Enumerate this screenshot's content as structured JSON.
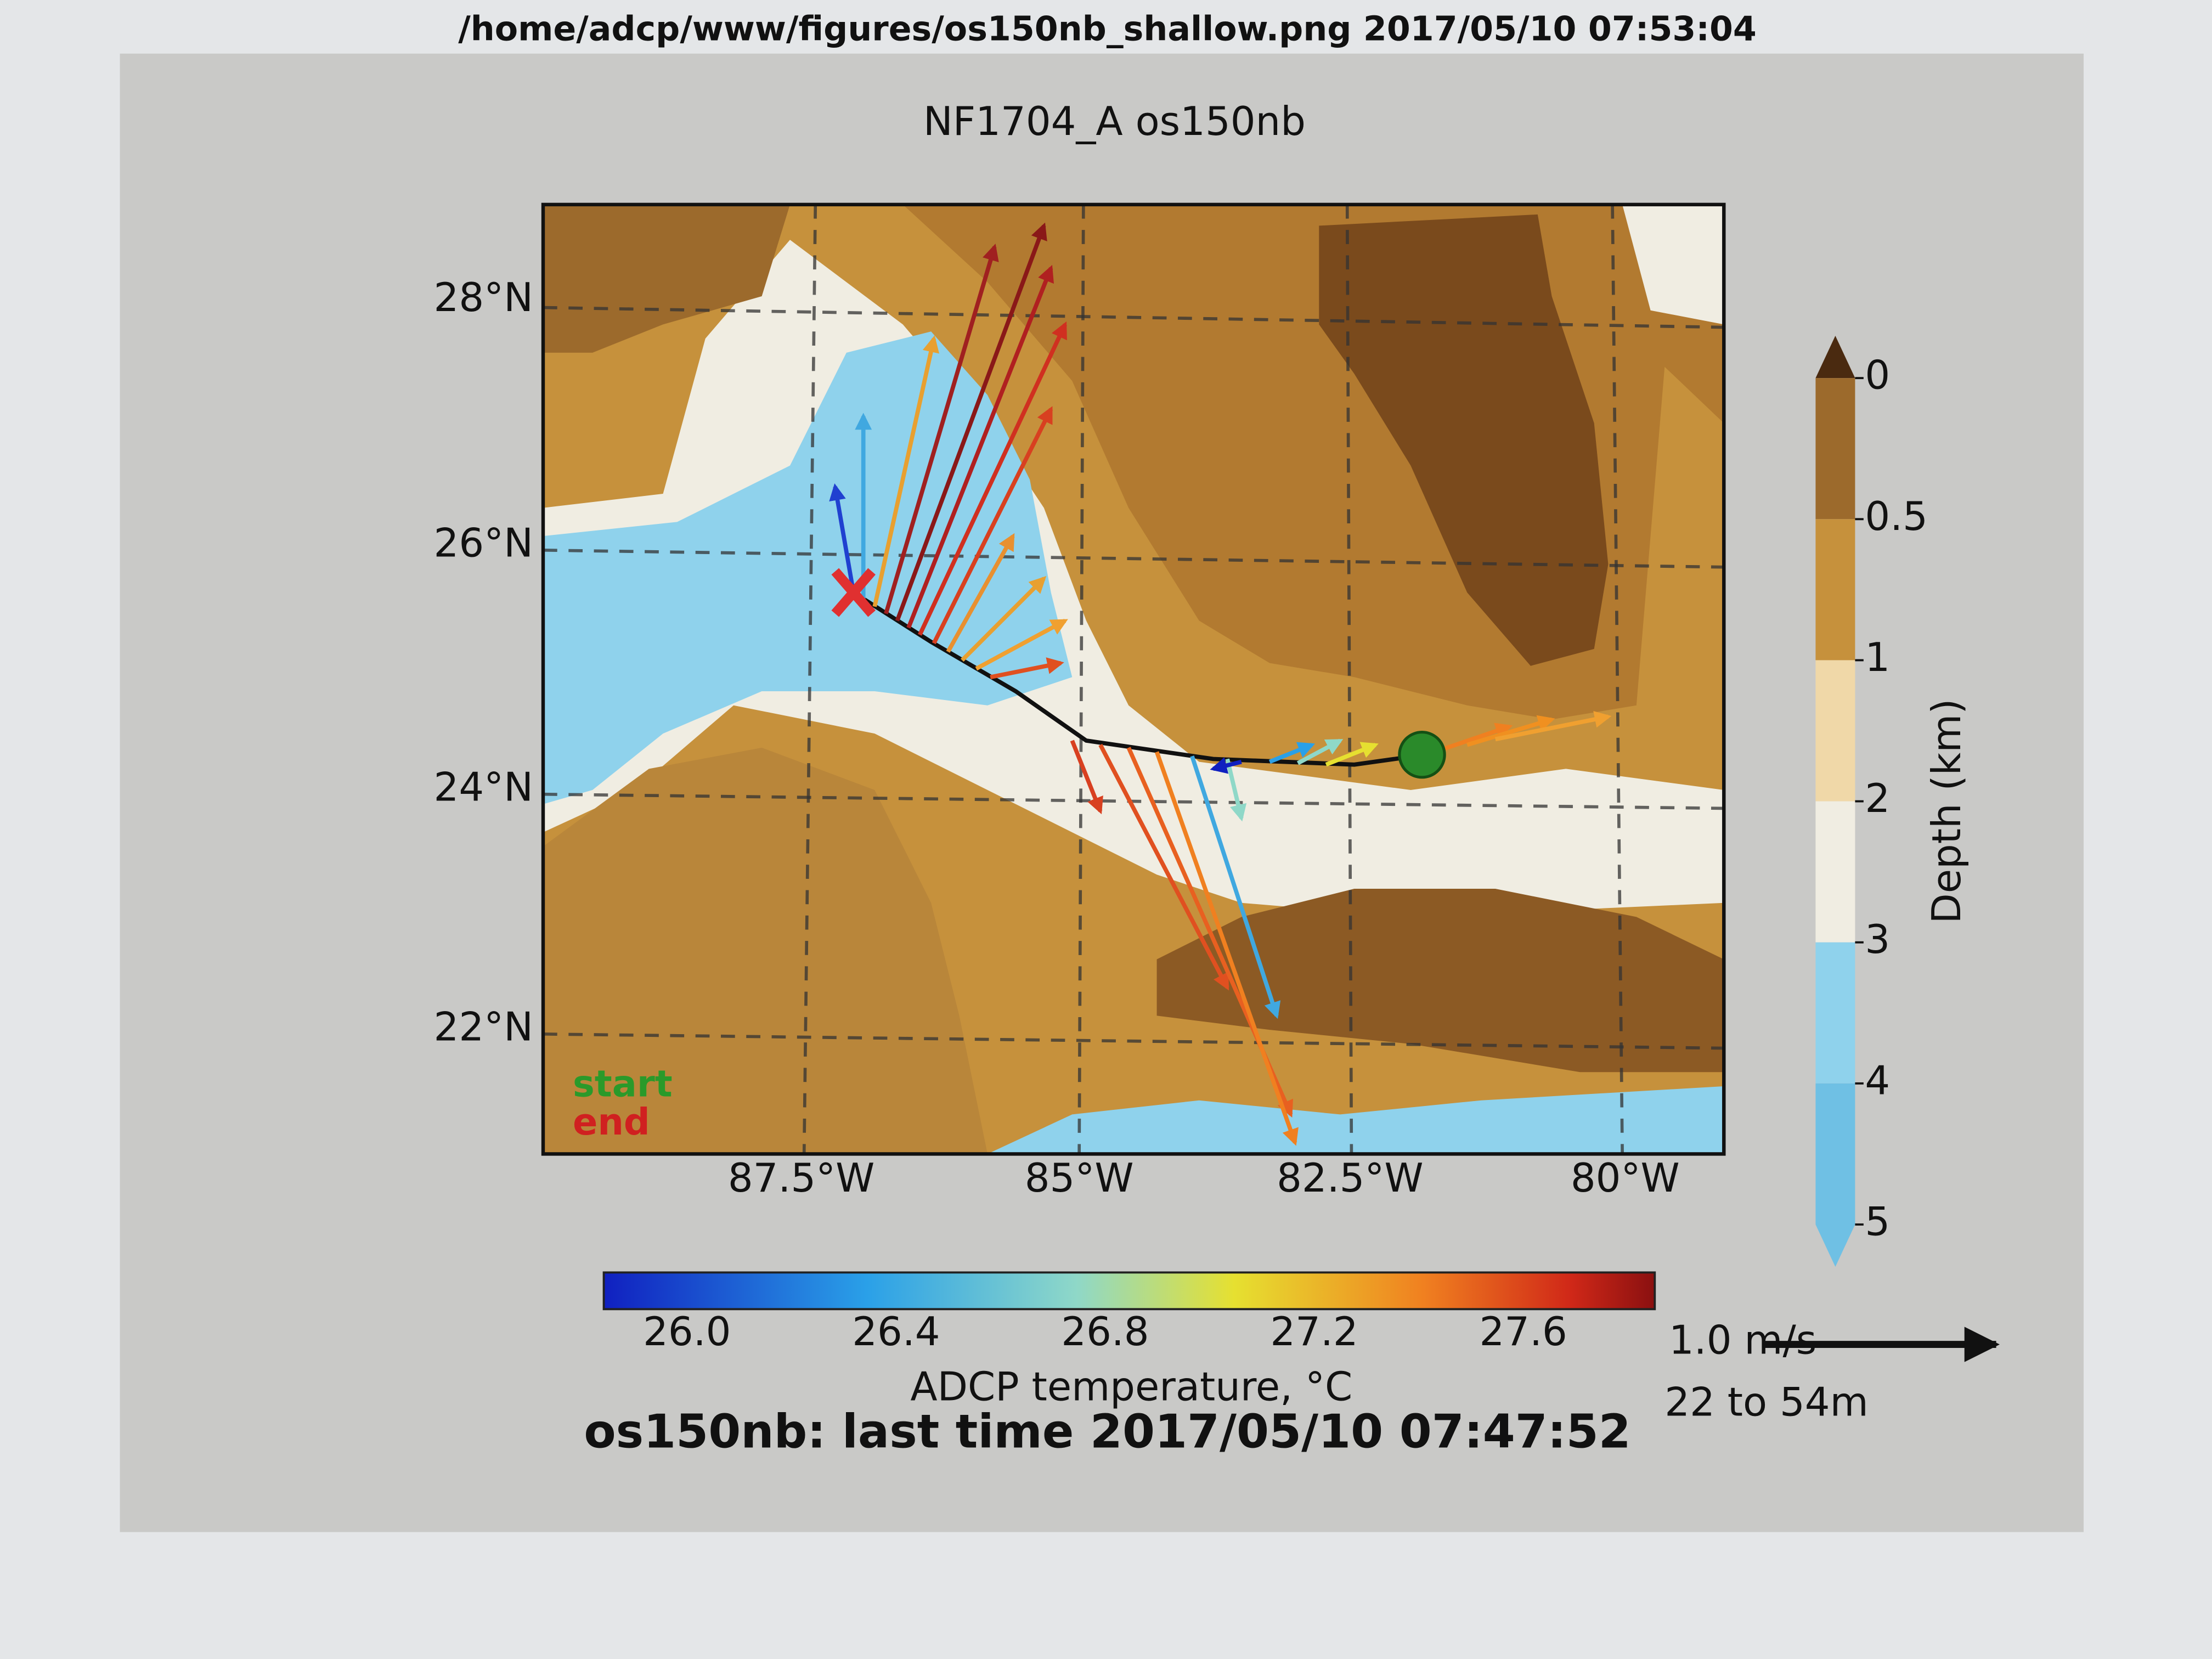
{
  "window": {
    "title": "/home/adcp/www/figures/os150nb_shallow.png 2017/05/10 07:53:04"
  },
  "figure": {
    "title": "NF1704_A os150nb",
    "lat_labels": [
      "28°N",
      "26°N",
      "24°N",
      "22°N"
    ],
    "lon_labels": [
      "87.5°W",
      "85°W",
      "82.5°W",
      "80°W"
    ],
    "legend": {
      "start": "start",
      "end": "end"
    },
    "depth_colorbar": {
      "ticks": [
        "0",
        "0.5",
        "1",
        "2",
        "3",
        "4",
        "5"
      ],
      "label": "Depth (km)"
    },
    "temperature_colorbar": {
      "ticks": [
        "26.0",
        "26.4",
        "26.8",
        "27.2",
        "27.6"
      ],
      "label": "ADCP temperature, °C"
    },
    "scale": {
      "label": "1.0 m/s",
      "range": "22 to 54m"
    },
    "footer": "os150nb: last time 2017/05/10 07:47:52"
  }
}
